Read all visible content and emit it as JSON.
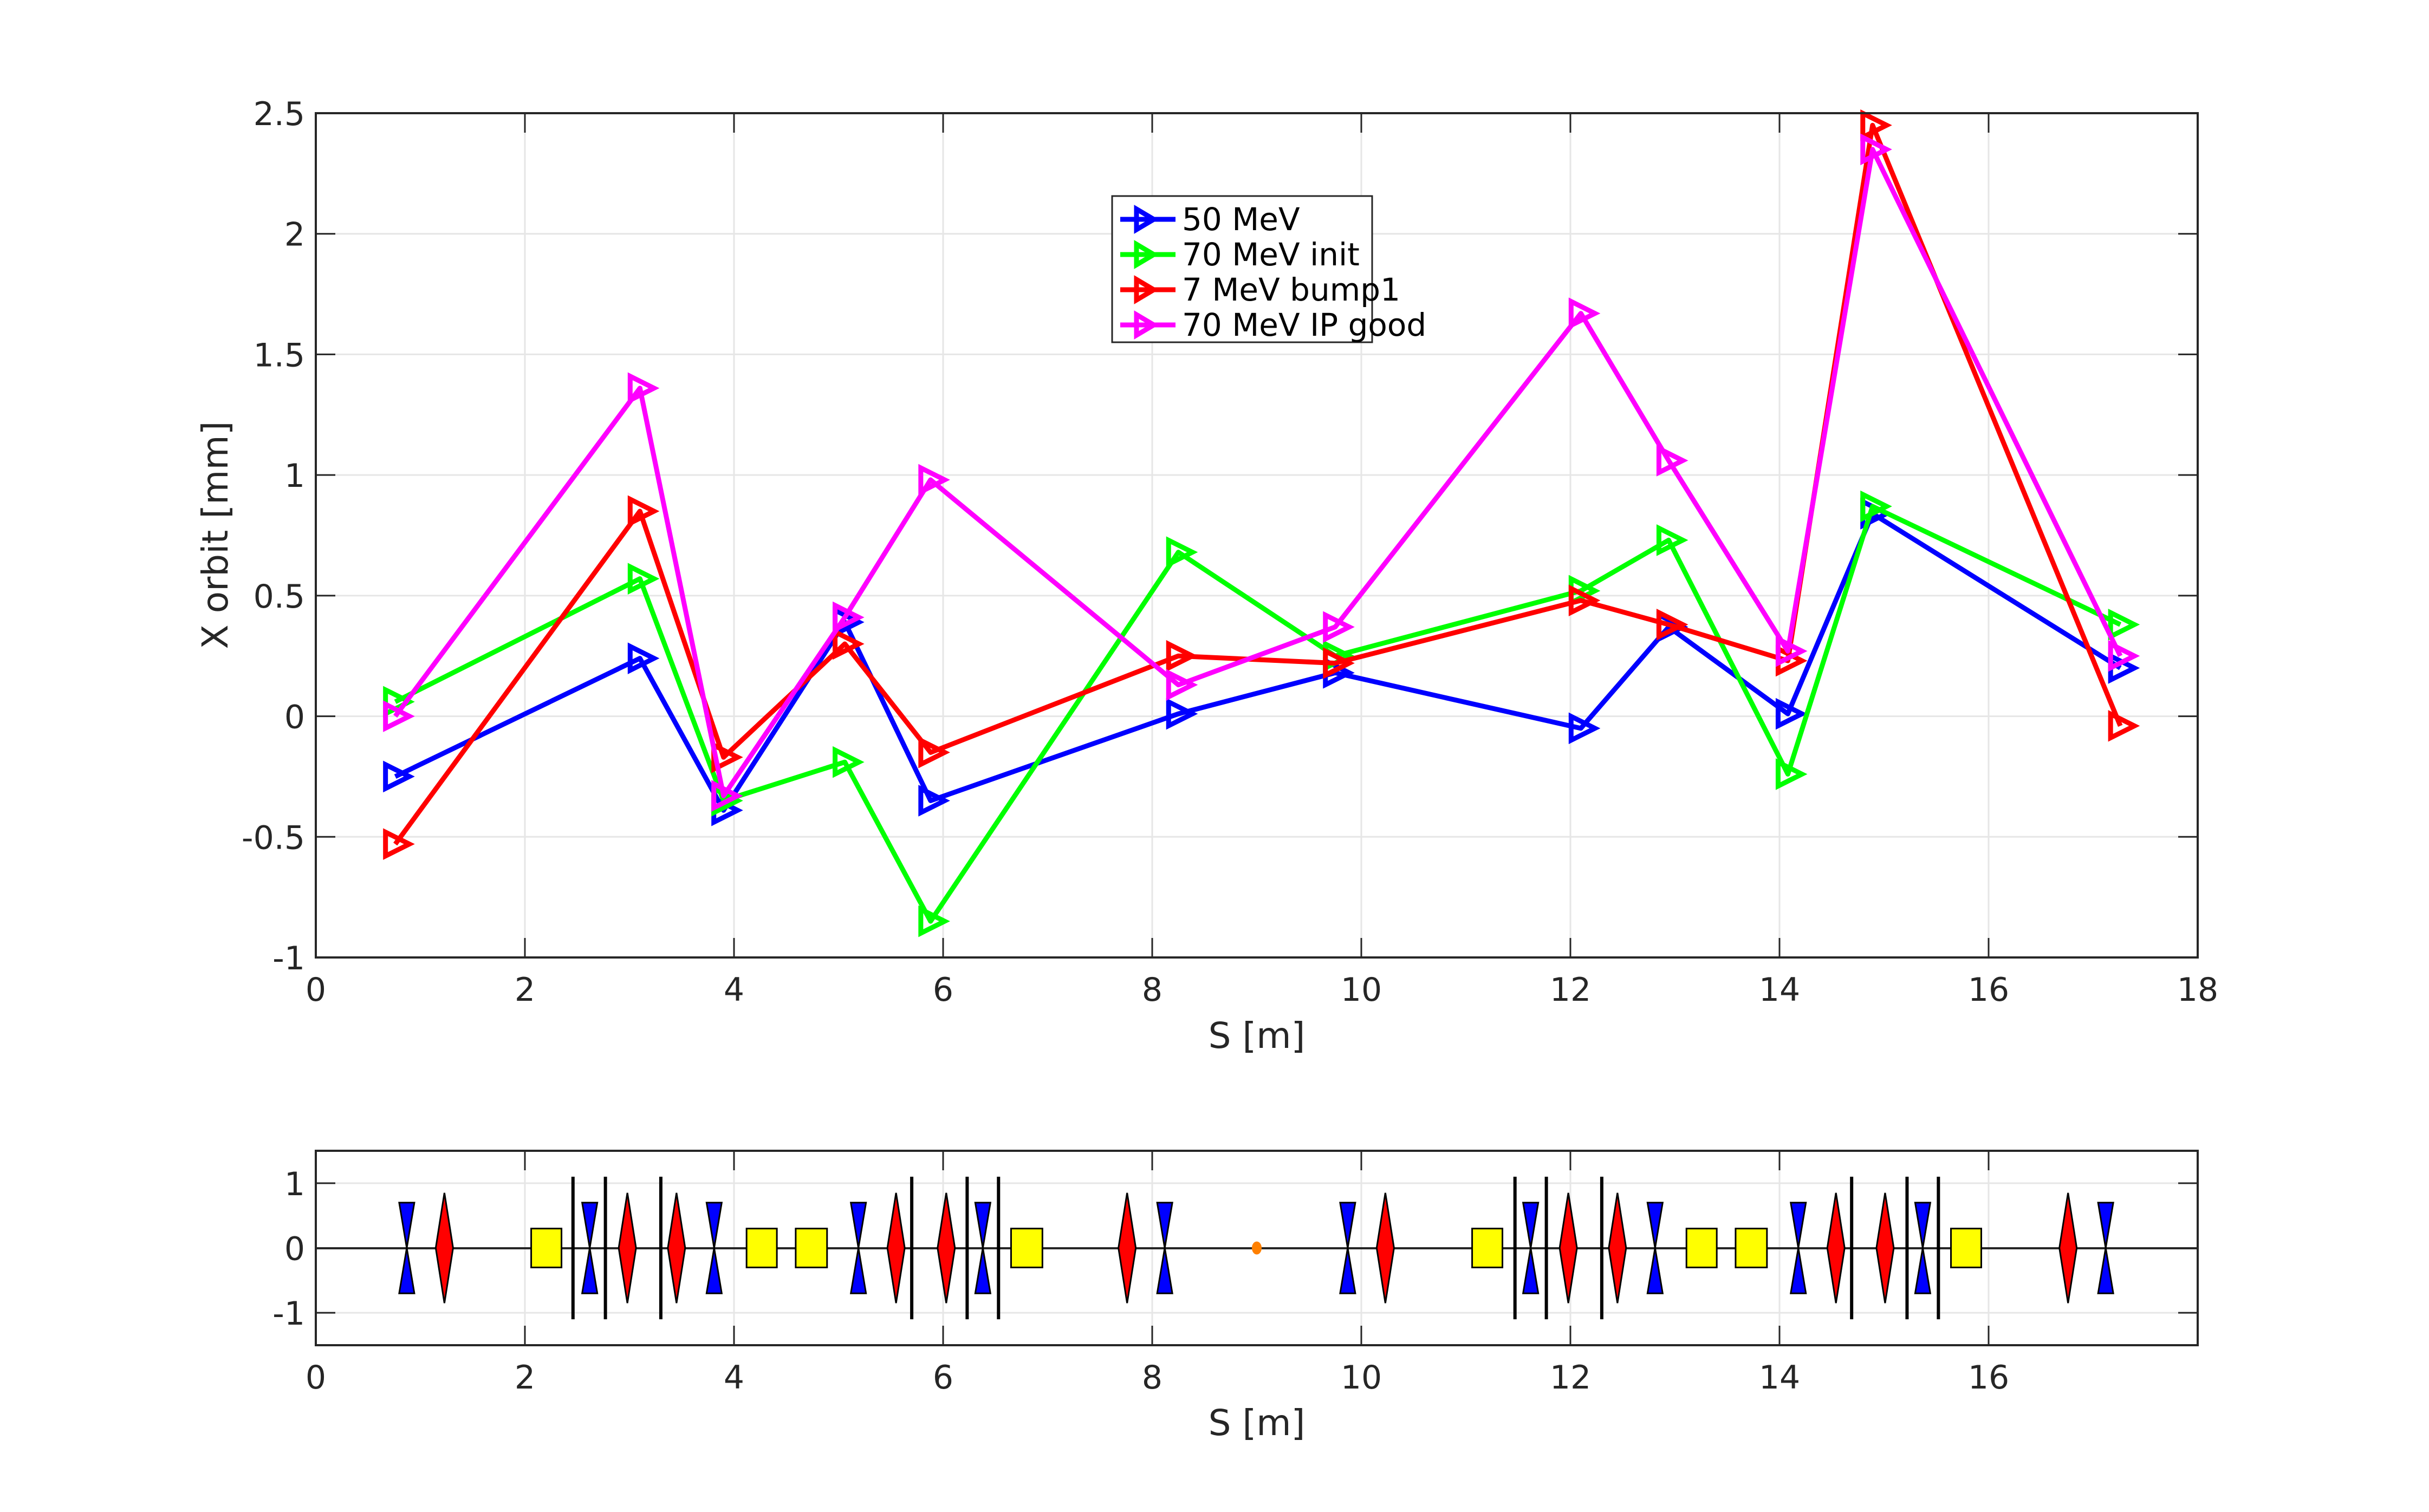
{
  "chart_data": [
    {
      "type": "line",
      "title": "",
      "xlabel": "S [m]",
      "ylabel": "X orbit [mm]",
      "xlim": [
        0,
        18
      ],
      "ylim": [
        -1,
        2.5
      ],
      "xticks": [
        "0",
        "2",
        "4",
        "6",
        "8",
        "10",
        "12",
        "14",
        "16",
        "18"
      ],
      "yticks": [
        "-1",
        "-0.5",
        "0",
        "0.5",
        "1",
        "1.5",
        "2",
        "2.5"
      ],
      "grid": true,
      "legend_position": "top-center",
      "marker": "triangle-right",
      "x": [
        0.76,
        3.1,
        3.9,
        5.06,
        5.88,
        8.25,
        9.75,
        12.1,
        12.94,
        14.08,
        14.89,
        17.26
      ],
      "series": [
        {
          "name": "50 MeV",
          "color": "#0000ff",
          "values": [
            -0.25,
            0.24,
            -0.39,
            0.39,
            -0.35,
            0.01,
            0.18,
            -0.05,
            0.37,
            0.01,
            0.84,
            0.2
          ]
        },
        {
          "name": "70 MeV init",
          "color": "#00ff00",
          "values": [
            0.06,
            0.57,
            -0.35,
            -0.19,
            -0.85,
            0.68,
            0.25,
            0.52,
            0.73,
            -0.24,
            0.87,
            0.38
          ]
        },
        {
          "name": "7 MeV bump1",
          "color": "#ff0000",
          "values": [
            -0.53,
            0.85,
            -0.17,
            0.3,
            -0.15,
            0.25,
            0.22,
            0.48,
            0.38,
            0.23,
            2.45,
            -0.04
          ]
        },
        {
          "name": "70 MeV IP good",
          "color": "#ff00ff",
          "values": [
            0.0,
            1.36,
            -0.33,
            0.41,
            0.98,
            0.13,
            0.37,
            1.67,
            1.06,
            0.27,
            2.35,
            0.25
          ]
        }
      ]
    },
    {
      "type": "lattice",
      "title": "",
      "xlabel": "S [m]",
      "ylabel": "",
      "xlim": [
        0,
        18
      ],
      "ylim": [
        -1.5,
        1.5
      ],
      "xticks": [
        "0",
        "2",
        "4",
        "6",
        "8",
        "10",
        "12",
        "14",
        "16"
      ],
      "yticks": [
        "-1",
        "0",
        "1"
      ],
      "grid": true,
      "colors": {
        "focusing": "#ff0000",
        "defocusing": "#0000ff",
        "dipole": "#ffff00",
        "monitor": "#000000",
        "ip": "#ff8000"
      },
      "elements": [
        {
          "kind": "defocusing-quad",
          "s": 0.87
        },
        {
          "kind": "focusing-quad",
          "s": 1.23
        },
        {
          "kind": "dipole",
          "s_start": 2.06,
          "s_end": 2.35
        },
        {
          "kind": "monitor",
          "s": 2.46
        },
        {
          "kind": "defocusing-quad",
          "s": 2.62
        },
        {
          "kind": "monitor",
          "s": 2.77
        },
        {
          "kind": "focusing-quad",
          "s": 2.98
        },
        {
          "kind": "monitor",
          "s": 3.3
        },
        {
          "kind": "focusing-quad",
          "s": 3.45
        },
        {
          "kind": "defocusing-quad",
          "s": 3.81
        },
        {
          "kind": "dipole",
          "s_start": 4.12,
          "s_end": 4.41
        },
        {
          "kind": "dipole",
          "s_start": 4.59,
          "s_end": 4.89
        },
        {
          "kind": "defocusing-quad",
          "s": 5.19
        },
        {
          "kind": "focusing-quad",
          "s": 5.55
        },
        {
          "kind": "monitor",
          "s": 5.7
        },
        {
          "kind": "focusing-quad",
          "s": 6.03
        },
        {
          "kind": "monitor",
          "s": 6.23
        },
        {
          "kind": "defocusing-quad",
          "s": 6.38
        },
        {
          "kind": "monitor",
          "s": 6.53
        },
        {
          "kind": "dipole",
          "s_start": 6.65,
          "s_end": 6.95
        },
        {
          "kind": "focusing-quad",
          "s": 7.76
        },
        {
          "kind": "defocusing-quad",
          "s": 8.12
        },
        {
          "kind": "ip",
          "s": 9.0
        },
        {
          "kind": "defocusing-quad",
          "s": 9.87
        },
        {
          "kind": "focusing-quad",
          "s": 10.23
        },
        {
          "kind": "dipole",
          "s_start": 11.06,
          "s_end": 11.35
        },
        {
          "kind": "monitor",
          "s": 11.47
        },
        {
          "kind": "defocusing-quad",
          "s": 11.62
        },
        {
          "kind": "monitor",
          "s": 11.77
        },
        {
          "kind": "focusing-quad",
          "s": 11.98
        },
        {
          "kind": "monitor",
          "s": 12.3
        },
        {
          "kind": "focusing-quad",
          "s": 12.45
        },
        {
          "kind": "defocusing-quad",
          "s": 12.81
        },
        {
          "kind": "dipole",
          "s_start": 13.11,
          "s_end": 13.4
        },
        {
          "kind": "dipole",
          "s_start": 13.58,
          "s_end": 13.88
        },
        {
          "kind": "defocusing-quad",
          "s": 14.18
        },
        {
          "kind": "focusing-quad",
          "s": 14.54
        },
        {
          "kind": "monitor",
          "s": 14.69
        },
        {
          "kind": "focusing-quad",
          "s": 15.01
        },
        {
          "kind": "monitor",
          "s": 15.22
        },
        {
          "kind": "defocusing-quad",
          "s": 15.37
        },
        {
          "kind": "monitor",
          "s": 15.52
        },
        {
          "kind": "dipole",
          "s_start": 15.64,
          "s_end": 15.93
        },
        {
          "kind": "focusing-quad",
          "s": 16.76
        },
        {
          "kind": "defocusing-quad",
          "s": 17.12
        }
      ]
    }
  ]
}
